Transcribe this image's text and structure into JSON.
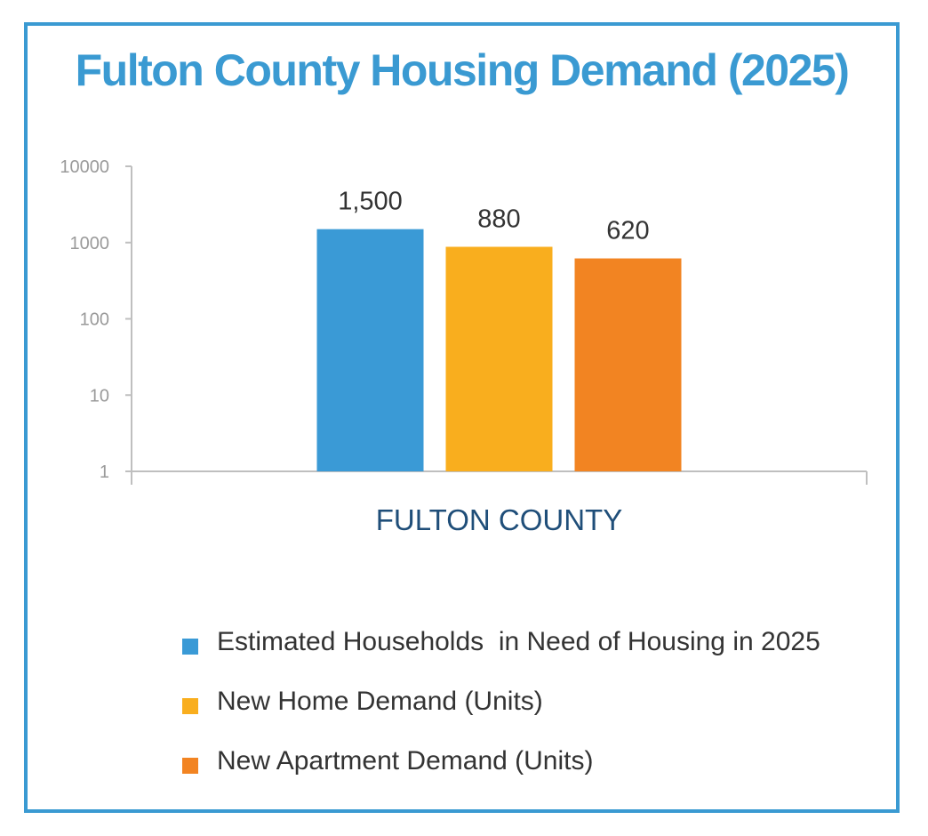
{
  "chart_data": {
    "type": "bar",
    "title": "Fulton County Housing Demand (2025)",
    "categories": [
      "FULTON COUNTY"
    ],
    "yscale": "log",
    "ylim": [
      1,
      10000
    ],
    "yticks": [
      "1",
      "10",
      "100",
      "1000",
      "10000"
    ],
    "grid": false,
    "legend_position": "bottom",
    "series": [
      {
        "name": "Estimated Households  in Need of Housing in 2025",
        "values": [
          1500
        ],
        "label": "1,500",
        "color": "#3a9ad6"
      },
      {
        "name": "New Home Demand (Units)",
        "values": [
          880
        ],
        "label": "880",
        "color": "#f9ae1e"
      },
      {
        "name": "New Apartment Demand (Units)",
        "values": [
          620
        ],
        "label": "620",
        "color": "#f28422"
      }
    ]
  },
  "colors": {
    "accent": "#3a9ad2",
    "axis": "#bfbfbf",
    "category_label": "#1f4e79"
  }
}
